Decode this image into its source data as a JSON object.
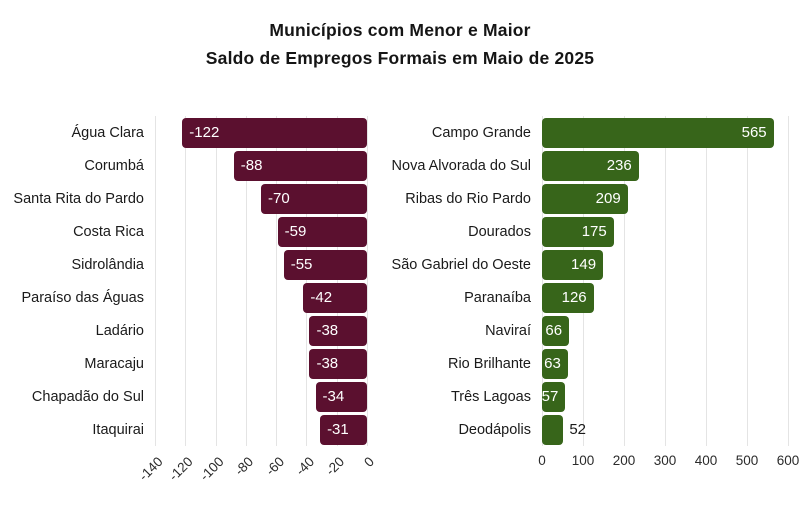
{
  "title": {
    "line1": "Municípios com Menor e Maior",
    "line2": "Saldo de Empregos Formais em Maio de 2025"
  },
  "colors": {
    "background": "#ffffff",
    "title": "#151515",
    "category_label": "#1a1a1a",
    "tick_label": "#2b2b2b",
    "grid": "#e4e4e4",
    "negative_bar": "#5b102f",
    "positive_bar": "#37651a",
    "value_label_inside": "#ffffff",
    "value_label_outside": "#1a1a1a"
  },
  "chart_data": [
    {
      "type": "bar",
      "orientation": "horizontal",
      "panel": "menor-saldo",
      "categories": [
        "Água Clara",
        "Corumbá",
        "Santa Rita do Pardo",
        "Costa Rica",
        "Sidrolândia",
        "Paraíso das Águas",
        "Ladário",
        "Maracaju",
        "Chapadão do Sul",
        "Itaquirai"
      ],
      "values": [
        -122,
        -88,
        -70,
        -59,
        -55,
        -42,
        -38,
        -38,
        -34,
        -31
      ],
      "xlim": [
        -140,
        0
      ],
      "xticks": [
        -140,
        -120,
        -100,
        -80,
        -60,
        -40,
        -20,
        0
      ],
      "tick_rotation": -45,
      "grid": true,
      "legend": "none",
      "bar_color": "#5b102f",
      "value_label_positions": [
        "inside",
        "inside",
        "inside",
        "inside",
        "inside",
        "inside",
        "inside",
        "inside",
        "inside",
        "inside"
      ]
    },
    {
      "type": "bar",
      "orientation": "horizontal",
      "panel": "maior-saldo",
      "categories": [
        "Campo Grande",
        "Nova Alvorada do Sul",
        "Ribas do Rio Pardo",
        "Dourados",
        "São Gabriel do Oeste",
        "Paranaíba",
        "Naviraí",
        "Rio Brilhante",
        "Três Lagoas",
        "Deodápolis"
      ],
      "values": [
        565,
        236,
        209,
        175,
        149,
        126,
        66,
        63,
        57,
        52
      ],
      "xlim": [
        0,
        600
      ],
      "xticks": [
        0,
        100,
        200,
        300,
        400,
        500,
        600
      ],
      "tick_rotation": 0,
      "grid": true,
      "legend": "none",
      "bar_color": "#37651a",
      "value_label_positions": [
        "inside",
        "inside",
        "inside",
        "inside",
        "inside",
        "inside",
        "inside",
        "inside",
        "inside",
        "outside"
      ]
    }
  ]
}
